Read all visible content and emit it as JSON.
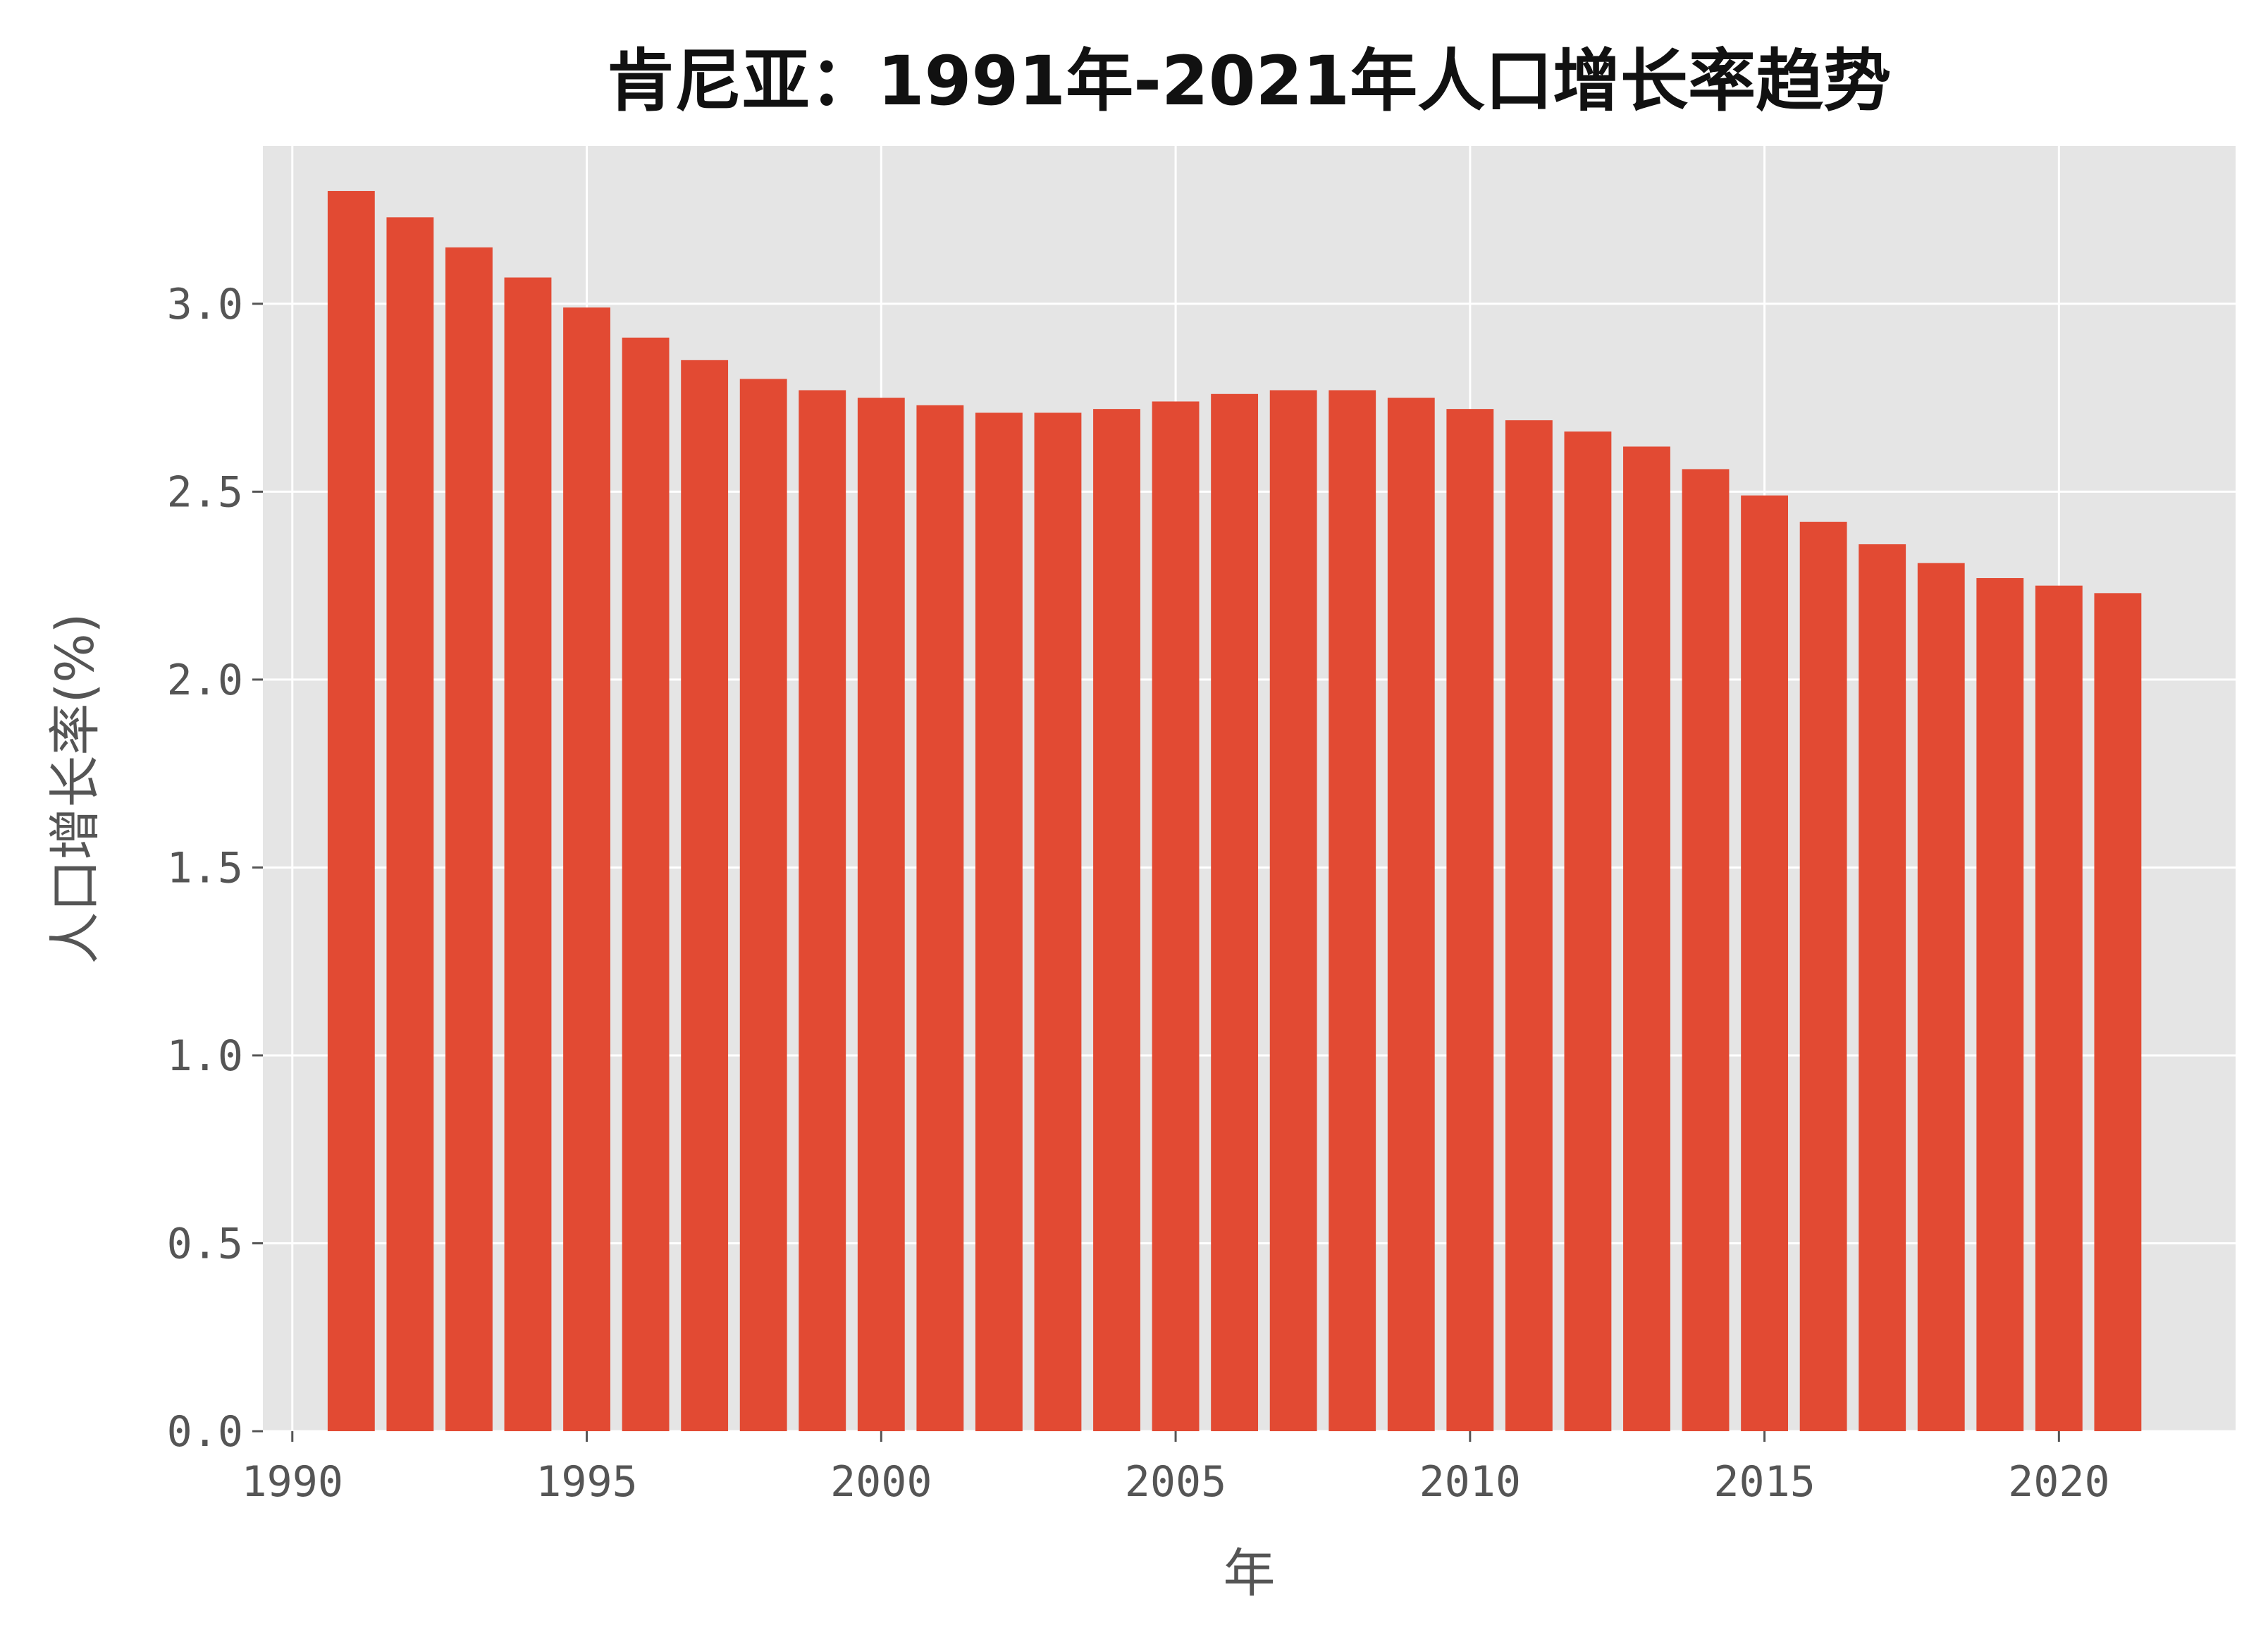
{
  "chart_data": {
    "type": "bar",
    "title": "肯尼亚：1991年-2021年人口增长率趋势",
    "xlabel": "年",
    "ylabel": "人口增长率(%)",
    "x": [
      1991,
      1992,
      1993,
      1994,
      1995,
      1996,
      1997,
      1998,
      1999,
      2000,
      2001,
      2002,
      2003,
      2004,
      2005,
      2006,
      2007,
      2008,
      2009,
      2010,
      2011,
      2012,
      2013,
      2014,
      2015,
      2016,
      2017,
      2018,
      2019,
      2020,
      2021
    ],
    "values": [
      3.3,
      3.23,
      3.15,
      3.07,
      2.99,
      2.91,
      2.85,
      2.8,
      2.77,
      2.75,
      2.73,
      2.71,
      2.71,
      2.72,
      2.74,
      2.76,
      2.77,
      2.77,
      2.75,
      2.72,
      2.69,
      2.66,
      2.62,
      2.56,
      2.49,
      2.42,
      2.36,
      2.31,
      2.27,
      2.25,
      2.23
    ],
    "xlim": [
      1989.5,
      2023
    ],
    "ylim": [
      0,
      3.42
    ],
    "xticks": [
      1990,
      1995,
      2000,
      2005,
      2010,
      2015,
      2020
    ],
    "yticks": [
      0.0,
      0.5,
      1.0,
      1.5,
      2.0,
      2.5,
      3.0
    ],
    "ytick_labels": [
      "0.0",
      "0.5",
      "1.0",
      "1.5",
      "2.0",
      "2.5",
      "3.0"
    ],
    "grid": true,
    "colors": {
      "bar": "#E24A33",
      "plot_background": "#E5E5E5",
      "grid": "#FFFFFF"
    }
  }
}
